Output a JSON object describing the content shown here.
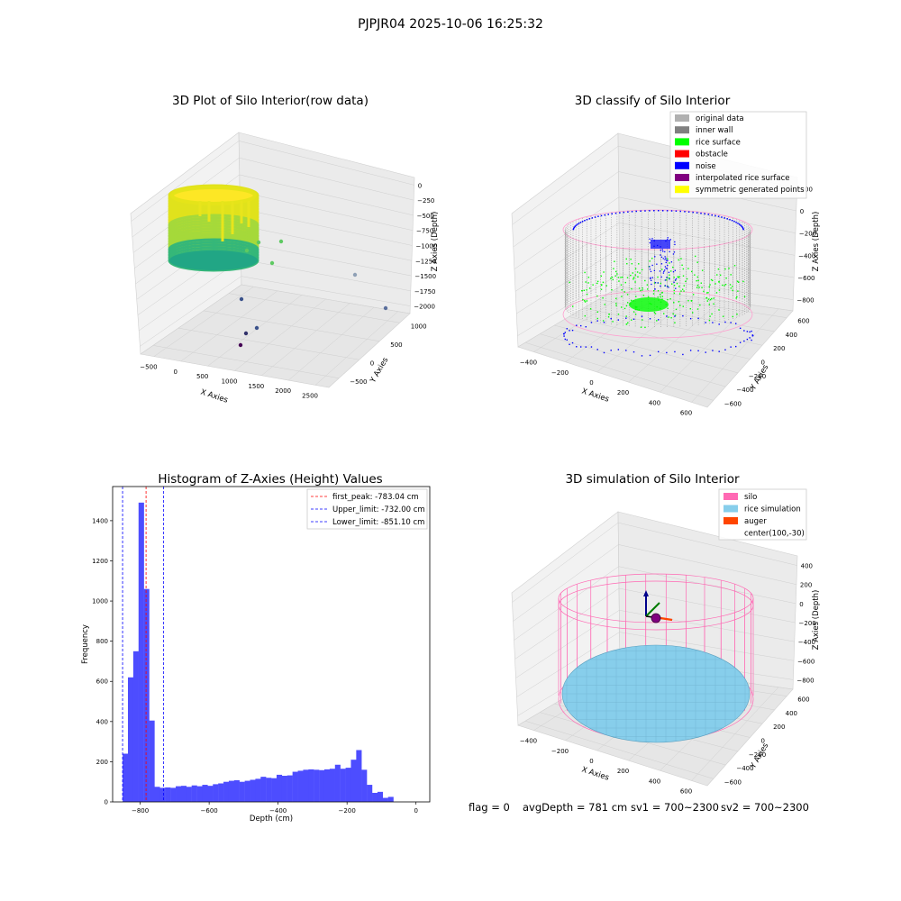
{
  "suptitle": "PJPJR04 2025-10-06 16:25:32",
  "footer": {
    "flag": "flag = 0",
    "avg_depth": "avgDepth = 781 cm",
    "sv1": "sv1 = 700~2300",
    "sv2": "sv2 = 700~2300"
  },
  "colors": {
    "hist_bar": "#4d4dff",
    "peak_line": "#ff0000",
    "limit_line": "#0000ff",
    "silo": "#ff69b4",
    "rice_sim": "#87ceeb",
    "auger": "#ff4500",
    "rice_surface": "#00ff00",
    "noise": "#0000ff",
    "inner_wall": "#808080",
    "original": "#b0b0b0",
    "obstacle": "#ff0000",
    "interp": "#800080",
    "symmetric": "#ffff00"
  },
  "chart_data": [
    {
      "type": "scatter3d",
      "title": "3D Plot of Silo Interior(row data)",
      "xlabel": "X Axies",
      "ylabel": "Y Axies",
      "zlabel": "Z Axies (Depth)",
      "xticks": [
        "−500",
        "0",
        "500",
        "1000",
        "1500",
        "2000",
        "2500"
      ],
      "yticks": [
        "−500",
        "0",
        "500",
        "1000"
      ],
      "zticks": [
        "0",
        "−250",
        "−500",
        "−750",
        "−1000",
        "−1250",
        "−1500",
        "−1750",
        "−2000"
      ],
      "colormap": "viridis",
      "outliers": [
        {
          "x": 600,
          "y": 900,
          "z": -1000
        },
        {
          "x": 1100,
          "y": 1000,
          "z": -950
        },
        {
          "x": 900,
          "y": 600,
          "z": -1250
        },
        {
          "x": 400,
          "y": 300,
          "z": -1150
        },
        {
          "x": 2200,
          "y": 1000,
          "z": -1500
        },
        {
          "x": 2500,
          "y": 1200,
          "z": -2000
        },
        {
          "x": 300,
          "y": 0,
          "z": -1900
        },
        {
          "x": 500,
          "y": 100,
          "z": -2000
        },
        {
          "x": 200,
          "y": -200,
          "z": -2000
        },
        {
          "x": 300,
          "y": -350,
          "z": -2050
        }
      ]
    },
    {
      "type": "scatter3d",
      "title": "3D classify of Silo Interior",
      "xlabel": "X Axies",
      "ylabel": "Y Axies",
      "zlabel": "Z Axies (Depth)",
      "xticks": [
        "−400",
        "−200",
        "0",
        "200",
        "400",
        "600"
      ],
      "yticks": [
        "−600",
        "−400",
        "−200",
        "0",
        "200",
        "400",
        "600"
      ],
      "zticks": [
        "200",
        "0",
        "−200",
        "−400",
        "−600",
        "−800"
      ],
      "legend": [
        {
          "label": "original data",
          "color": "#b0b0b0"
        },
        {
          "label": "inner wall",
          "color": "#808080"
        },
        {
          "label": "rice surface",
          "color": "#00ff00"
        },
        {
          "label": "obstacle",
          "color": "#ff0000"
        },
        {
          "label": "noise",
          "color": "#0000ff"
        },
        {
          "label": "interpolated rice surface",
          "color": "#800080"
        },
        {
          "label": "symmetric generated points",
          "color": "#ffff00"
        }
      ]
    },
    {
      "type": "bar",
      "title": "Histogram of Z-Axies (Height) Values",
      "xlabel": "Depth (cm)",
      "ylabel": "Frequency",
      "xlim": [
        -880,
        40
      ],
      "ylim": [
        0,
        1570
      ],
      "xticks": [
        -800,
        -600,
        -400,
        -200,
        0
      ],
      "xtick_labels": [
        "−800",
        "−600",
        "−400",
        "−200",
        "0"
      ],
      "yticks": [
        0,
        200,
        400,
        600,
        800,
        1000,
        1200,
        1400
      ],
      "bin_start": -851,
      "bin_width": 15.4,
      "values": [
        240,
        620,
        750,
        1490,
        1060,
        405,
        75,
        70,
        72,
        70,
        78,
        80,
        75,
        82,
        78,
        85,
        80,
        88,
        92,
        100,
        105,
        108,
        100,
        105,
        110,
        115,
        125,
        120,
        118,
        135,
        130,
        132,
        150,
        155,
        160,
        162,
        160,
        158,
        162,
        165,
        185,
        165,
        170,
        210,
        258,
        160,
        85,
        45,
        50,
        20,
        25
      ],
      "lines": [
        {
          "label": "first_peak: -783.04 cm",
          "x": -783.04,
          "color": "#ff0000"
        },
        {
          "label": "Upper_limit: -732.00 cm",
          "x": -732.0,
          "color": "#0000ff"
        },
        {
          "label": "Lower_limit: -851.10 cm",
          "x": -851.1,
          "color": "#0000ff"
        }
      ]
    },
    {
      "type": "surface3d",
      "title": "3D simulation of Silo Interior",
      "xlabel": "X Axies",
      "ylabel": "Y Axies",
      "zlabel": "Z Axies (Depth)",
      "xticks": [
        "−400",
        "−200",
        "0",
        "200",
        "400",
        "600"
      ],
      "yticks": [
        "−600",
        "−400",
        "−200",
        "0",
        "200",
        "400",
        "600"
      ],
      "zticks": [
        "400",
        "200",
        "0",
        "−200",
        "−400",
        "−600",
        "−800"
      ],
      "legend": [
        {
          "label": "silo",
          "color": "#ff69b4"
        },
        {
          "label": "rice simulation",
          "color": "#87ceeb"
        },
        {
          "label": "auger",
          "color": "#ff4500"
        },
        {
          "label": "center(100,-30)",
          "color": ""
        }
      ]
    }
  ]
}
